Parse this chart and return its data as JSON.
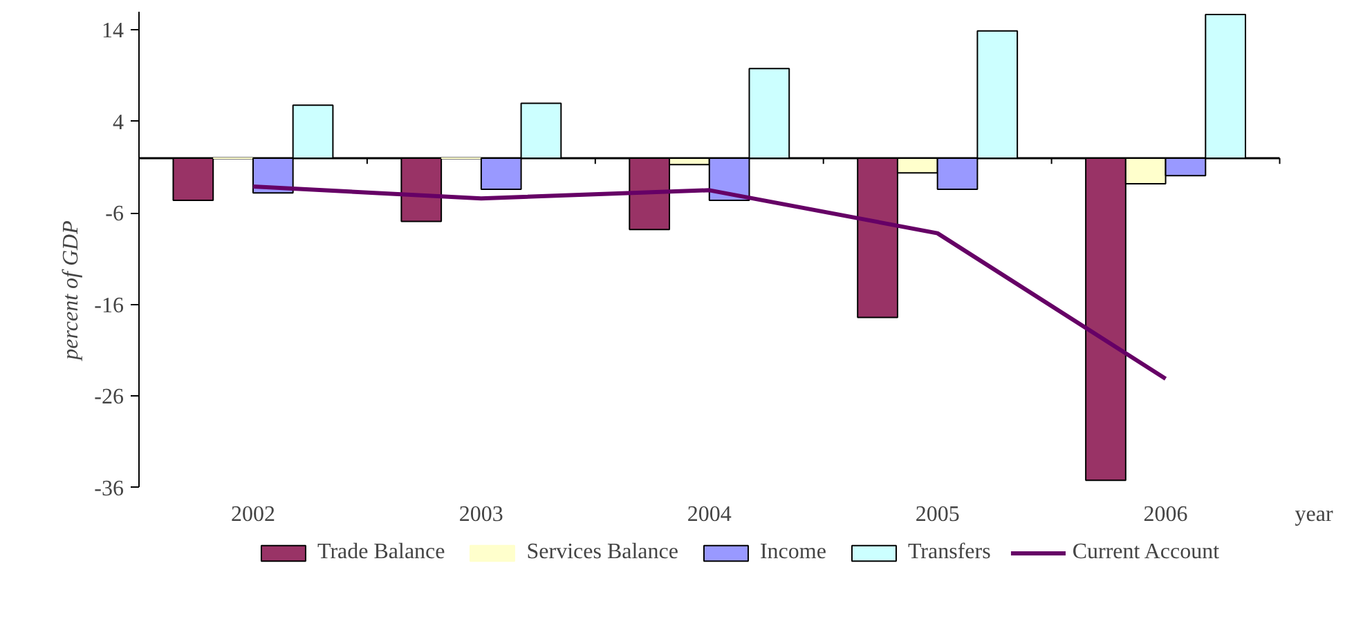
{
  "chart_data": {
    "type": "bar",
    "xlabel": "year",
    "ylabel": "percent of GDP",
    "categories": [
      "2002",
      "2003",
      "2004",
      "2005",
      "2006"
    ],
    "series": [
      {
        "name": "Trade Balance",
        "color": "#993366",
        "values": [
          -4.6,
          -6.9,
          -7.8,
          -17.4,
          -35.2
        ]
      },
      {
        "name": "Services Balance",
        "color": "#ffffcc",
        "values": [
          0,
          0,
          -0.7,
          -1.6,
          -2.8
        ]
      },
      {
        "name": "Income",
        "color": "#9999ff",
        "values": [
          -3.8,
          -3.4,
          -4.6,
          -3.4,
          -1.9
        ]
      },
      {
        "name": "Transfers",
        "color": "#ccffff",
        "values": [
          5.8,
          6.0,
          9.8,
          13.9,
          15.7
        ]
      },
      {
        "name": "Current Account",
        "color": "#660066",
        "type": "line",
        "values": [
          -3.1,
          -4.4,
          -3.5,
          -8.2,
          -24.1
        ]
      }
    ],
    "ylim": [
      -36,
      16
    ],
    "yticks": [
      -36,
      -26,
      -16,
      -6,
      4,
      14
    ],
    "grid": false,
    "legend": "bottom",
    "marker": "none",
    "line_style": "solid"
  }
}
